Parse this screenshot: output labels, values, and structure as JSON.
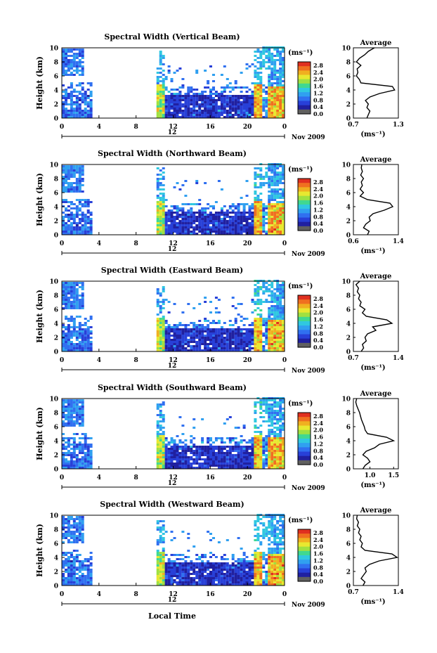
{
  "figure": {
    "x_axis_label": "Local Time",
    "color_unit": "(ms⁻¹)",
    "average_title": "Average",
    "average_unit": "(ms⁻¹)",
    "y_label": "Height (km)",
    "day_label": "12",
    "date_label": "Nov 2009"
  },
  "colorbar": {
    "ticks": [
      "2.8",
      "2.4",
      "2.0",
      "1.6",
      "1.2",
      "0.8",
      "0.4",
      "0.0"
    ],
    "colors": [
      "#e03020",
      "#f07020",
      "#f0b020",
      "#e8e830",
      "#a0e040",
      "#40d890",
      "#30c8e0",
      "#30a0f0",
      "#3070f0",
      "#2840d8",
      "#2020a0",
      "#606060"
    ]
  },
  "chart_data": [
    {
      "type": "heatmap",
      "title": "Spectral Width (Vertical Beam)",
      "xlabel": "",
      "ylabel": "Height (km)",
      "x_ticks": [
        "0",
        "4",
        "8",
        "12",
        "16",
        "20",
        "0"
      ],
      "y_ticks": [
        "0",
        "2",
        "4",
        "6",
        "8",
        "10"
      ],
      "xlim": [
        0,
        24
      ],
      "ylim": [
        0,
        10
      ],
      "colorbar_ticks": [
        "0.0",
        "0.4",
        "0.8",
        "1.2",
        "1.6",
        "2.0",
        "2.4",
        "2.8"
      ],
      "avg_xticks": [
        "0.7",
        "1.3"
      ],
      "avg_xlim": [
        0.7,
        1.3
      ],
      "avg_profile": {
        "height": [
          0,
          0.5,
          1,
          1.5,
          2,
          2.5,
          3,
          3.5,
          4,
          4.5,
          5,
          5.5,
          6,
          6.5,
          7,
          7.5,
          8,
          8.5,
          9,
          9.5,
          10
        ],
        "value": [
          0.88,
          0.9,
          0.92,
          0.88,
          0.9,
          0.86,
          0.92,
          1.05,
          1.25,
          1.22,
          0.8,
          0.78,
          0.74,
          0.76,
          0.75,
          0.8,
          0.74,
          0.78,
          0.85,
          0.9,
          0.98
        ]
      }
    },
    {
      "type": "heatmap",
      "title": "Spectral Width (Northward Beam)",
      "xlabel": "",
      "ylabel": "Height (km)",
      "x_ticks": [
        "0",
        "4",
        "8",
        "12",
        "16",
        "20",
        "0"
      ],
      "y_ticks": [
        "0",
        "2",
        "4",
        "6",
        "8",
        "10"
      ],
      "xlim": [
        0,
        24
      ],
      "ylim": [
        0,
        10
      ],
      "colorbar_ticks": [
        "0.0",
        "0.4",
        "0.8",
        "1.2",
        "1.6",
        "2.0",
        "2.4",
        "2.8"
      ],
      "avg_xticks": [
        "0.6",
        "1.4"
      ],
      "avg_xlim": [
        0.6,
        1.4
      ],
      "avg_profile": {
        "height": [
          0,
          0.5,
          1,
          1.5,
          2,
          2.5,
          3,
          3.5,
          4,
          4.5,
          5,
          5.5,
          6,
          6.5,
          7,
          7.5,
          8,
          8.5,
          9,
          9.5,
          10
        ],
        "value": [
          0.85,
          0.88,
          0.78,
          0.82,
          0.9,
          0.88,
          0.95,
          1.15,
          1.3,
          1.25,
          0.85,
          0.72,
          0.78,
          0.72,
          0.76,
          0.74,
          0.78,
          0.73,
          0.76,
          0.74,
          0.75
        ]
      }
    },
    {
      "type": "heatmap",
      "title": "Spectral Width (Eastward Beam)",
      "xlabel": "",
      "ylabel": "Height (km)",
      "x_ticks": [
        "0",
        "4",
        "8",
        "12",
        "16",
        "20",
        "0"
      ],
      "y_ticks": [
        "0",
        "2",
        "4",
        "6",
        "8",
        "10"
      ],
      "xlim": [
        0,
        24
      ],
      "ylim": [
        0,
        10
      ],
      "colorbar_ticks": [
        "0.0",
        "0.4",
        "0.8",
        "1.2",
        "1.6",
        "2.0",
        "2.4",
        "2.8"
      ],
      "avg_xticks": [
        "0.7",
        "1.4"
      ],
      "avg_xlim": [
        0.7,
        1.4
      ],
      "avg_profile": {
        "height": [
          0,
          0.5,
          1,
          1.5,
          2,
          2.5,
          3,
          3.5,
          4,
          4.5,
          5,
          5.5,
          6,
          6.5,
          7,
          7.5,
          8,
          8.5,
          9,
          9.5,
          10
        ],
        "value": [
          0.82,
          0.86,
          0.84,
          0.9,
          0.88,
          0.92,
          1.05,
          1.0,
          1.3,
          1.22,
          0.9,
          0.84,
          0.88,
          0.8,
          0.82,
          0.78,
          0.8,
          0.76,
          0.78,
          0.74,
          0.8
        ]
      }
    },
    {
      "type": "heatmap",
      "title": "Spectral Width (Southward Beam)",
      "xlabel": "",
      "ylabel": "Height (km)",
      "x_ticks": [
        "0",
        "4",
        "8",
        "12",
        "16",
        "20",
        "0"
      ],
      "y_ticks": [
        "0",
        "2",
        "4",
        "6",
        "8",
        "10"
      ],
      "xlim": [
        0,
        24
      ],
      "ylim": [
        0,
        10
      ],
      "colorbar_ticks": [
        "0.0",
        "0.4",
        "0.8",
        "1.2",
        "1.6",
        "2.0",
        "2.4",
        "2.8"
      ],
      "avg_xticks": [
        "1.0",
        "1.5"
      ],
      "avg_xlim": [
        0.65,
        1.6
      ],
      "avg_profile": {
        "height": [
          0,
          0.5,
          1,
          1.5,
          2,
          2.5,
          3,
          3.5,
          4,
          4.5,
          5,
          5.5,
          6,
          6.5,
          7,
          7.5,
          8,
          8.5,
          9,
          9.5,
          10
        ],
        "value": [
          0.85,
          0.9,
          1.0,
          0.95,
          0.85,
          0.92,
          1.1,
          1.2,
          1.5,
          1.35,
          0.95,
          0.9,
          0.88,
          0.85,
          0.82,
          0.8,
          0.78,
          0.75,
          0.72,
          0.7,
          0.72
        ]
      }
    },
    {
      "type": "heatmap",
      "title": "Spectral Width (Westward Beam)",
      "xlabel": "Local Time",
      "ylabel": "Height (km)",
      "x_ticks": [
        "0",
        "4",
        "8",
        "12",
        "16",
        "20",
        "0"
      ],
      "y_ticks": [
        "0",
        "2",
        "4",
        "6",
        "8",
        "10"
      ],
      "xlim": [
        0,
        24
      ],
      "ylim": [
        0,
        10
      ],
      "colorbar_ticks": [
        "0.0",
        "0.4",
        "0.8",
        "1.2",
        "1.6",
        "2.0",
        "2.4",
        "2.8"
      ],
      "avg_xticks": [
        "0.7",
        "1.4"
      ],
      "avg_xlim": [
        0.7,
        1.4
      ],
      "avg_profile": {
        "height": [
          0,
          0.5,
          1,
          1.5,
          2,
          2.5,
          3,
          3.5,
          4,
          4.5,
          5,
          5.5,
          6,
          6.5,
          7,
          7.5,
          8,
          8.5,
          9,
          9.5,
          10
        ],
        "value": [
          0.85,
          0.88,
          0.82,
          0.86,
          0.9,
          0.88,
          0.95,
          1.1,
          1.38,
          1.3,
          0.88,
          0.82,
          0.84,
          0.8,
          0.82,
          0.78,
          0.8,
          0.76,
          0.78,
          0.75,
          0.76
        ]
      }
    }
  ]
}
